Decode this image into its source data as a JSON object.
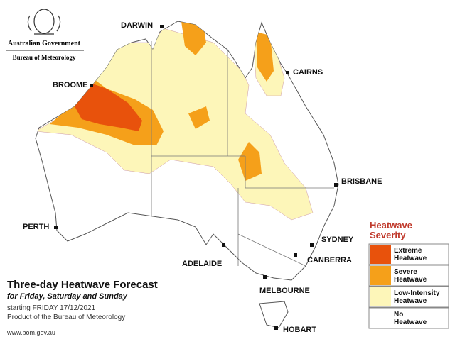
{
  "header": {
    "government": "Australian Government",
    "agency": "Bureau of Meteorology"
  },
  "cities": [
    "DARWIN",
    "CAIRNS",
    "BROOME",
    "BRISBANE",
    "PERTH",
    "SYDNEY",
    "ADELAIDE",
    "CANBERRA",
    "MELBOURNE",
    "HOBART"
  ],
  "legend": {
    "title": "Heatwave Severity",
    "items": [
      {
        "label": "Extreme Heatwave",
        "color": "#e8520c"
      },
      {
        "label": "Severe Heatwave",
        "color": "#f5a01a"
      },
      {
        "label": "Low-Intensity Heatwave",
        "color": "#fdf6b9"
      },
      {
        "label": "No Heatwave",
        "color": "#ffffff"
      }
    ]
  },
  "title": "Three-day Heatwave Forecast",
  "subtitle": "for Friday, Saturday and Sunday",
  "starting": "starting FRIDAY 17/12/2021",
  "product": "Product of the Bureau of Meteorology",
  "url": "www.bom.gov.au"
}
